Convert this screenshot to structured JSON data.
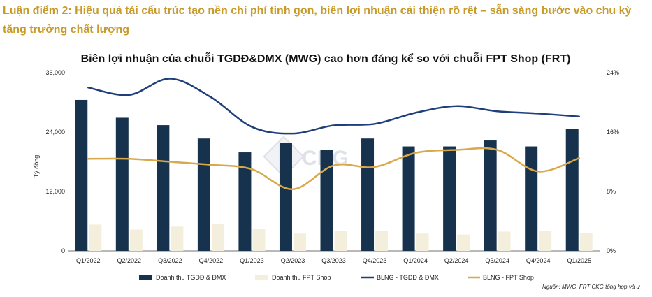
{
  "heading": "Luận điểm 2: Hiệu quả tái cấu trúc tạo nền chi phí tinh gọn, biên lợi nhuận cải thiện rõ rệt – sẵn sàng bước vào chu kỳ tăng trưởng chất lượng",
  "watermark": "CKG",
  "source_note": "Nguồn: MWG, FRT CKG tổng hợp và ư",
  "colors": {
    "heading": "#c79a2a",
    "mwg_bar": "#17324d",
    "frt_bar": "#f3efdc",
    "mwg_line": "#1f3f7a",
    "frt_line": "#d9a84a"
  },
  "chart_data": {
    "type": "bar",
    "title": "Biên lợi nhuận của chuỗi TGDĐ&DMX (MWG) cao hơn đáng kể so với chuỗi FPT Shop (FRT)",
    "ylabel": "Tỷ đồng",
    "y2label": "",
    "categories": [
      "Q1/2022",
      "Q2/2022",
      "Q3/2022",
      "Q4/2022",
      "Q1/2023",
      "Q2/2023",
      "Q3/2023",
      "Q4/2023",
      "Q1/2024",
      "Q2/2024",
      "Q3/2024",
      "Q4/2024",
      "Q1/2025"
    ],
    "ylim": [
      0,
      36000
    ],
    "yticks": [
      0,
      12000,
      24000,
      36000
    ],
    "ytick_labels": [
      "0",
      "12,000",
      "24,000",
      "36,000"
    ],
    "y2lim": [
      0,
      24
    ],
    "y2ticks": [
      0,
      8,
      16,
      24
    ],
    "y2tick_labels": [
      "0%",
      "8%",
      "16%",
      "24%"
    ],
    "grid": false,
    "legend_position": "bottom",
    "series": [
      {
        "name": "Doanh thu TGDĐ & ĐMX",
        "kind": "bar",
        "axis": "left",
        "values": [
          30500,
          26900,
          25400,
          22700,
          19900,
          21800,
          20400,
          22700,
          21100,
          21100,
          22300,
          21100,
          24700
        ]
      },
      {
        "name": "Doanh thu FPT Shop",
        "kind": "bar",
        "axis": "left",
        "values": [
          5300,
          4300,
          4900,
          5400,
          4400,
          3500,
          4000,
          4000,
          3500,
          3300,
          3900,
          4000,
          3600
        ]
      },
      {
        "name": "BLNG - TGDĐ & ĐMX",
        "kind": "line",
        "axis": "right",
        "values": [
          22.0,
          21.0,
          23.2,
          20.7,
          16.7,
          15.8,
          16.9,
          17.1,
          18.6,
          19.5,
          18.8,
          18.5,
          18.1
        ]
      },
      {
        "name": "BLNG - FPT Shop",
        "kind": "line",
        "axis": "right",
        "values": [
          12.4,
          12.4,
          12.0,
          11.6,
          11.0,
          8.3,
          11.5,
          11.3,
          13.2,
          13.6,
          13.6,
          10.7,
          12.5
        ]
      }
    ]
  }
}
